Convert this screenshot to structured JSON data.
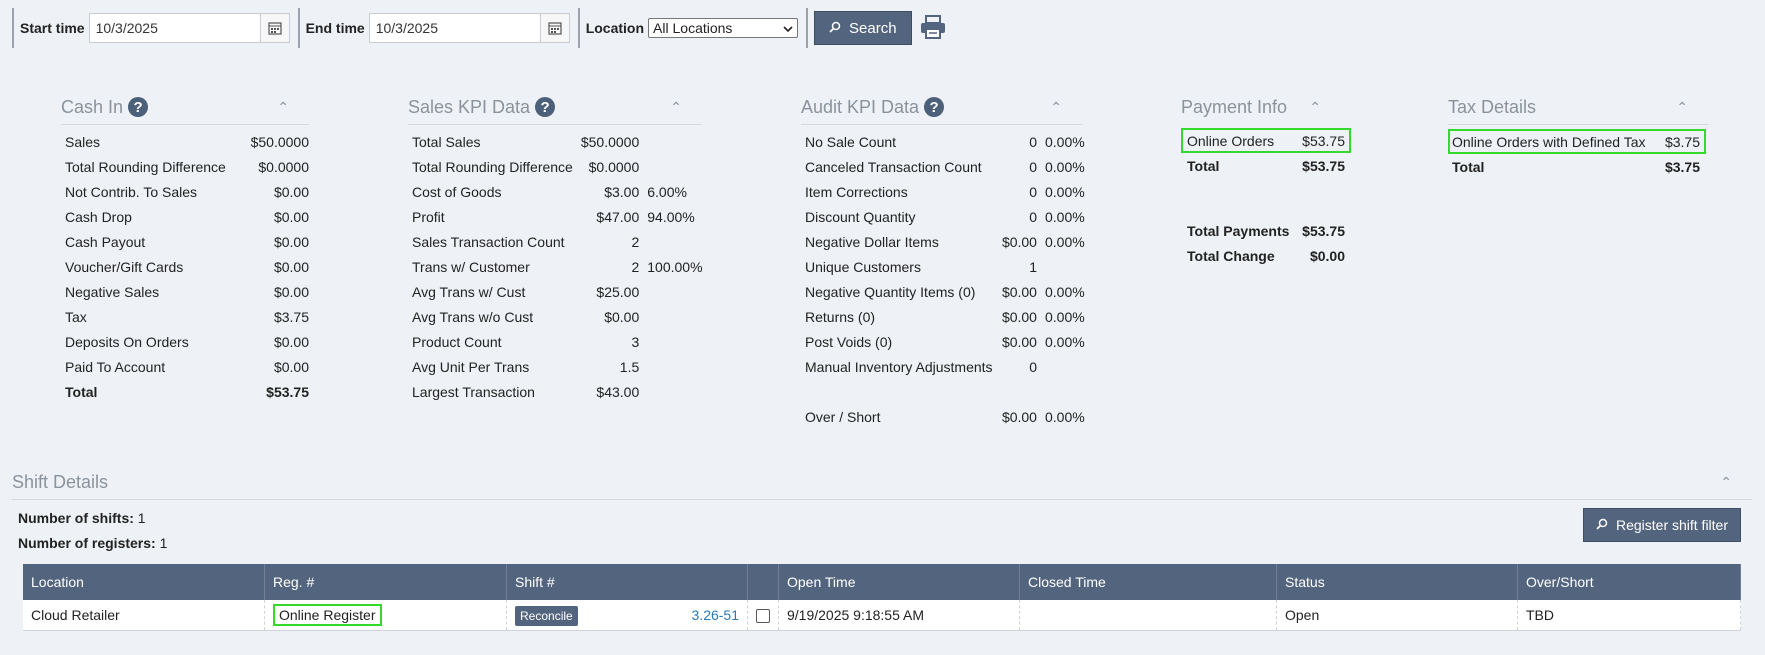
{
  "toolbar": {
    "start_label": "Start time",
    "start_value": "10/3/2025",
    "end_label": "End time",
    "end_value": "10/3/2025",
    "location_label": "Location",
    "location_value": "All Locations",
    "search_label": "Search",
    "icons": [
      "calendar-icon",
      "chevron-down-icon",
      "search-icon",
      "printer-icon"
    ]
  },
  "cash_in": {
    "title": "Cash In",
    "rows": [
      {
        "label": "Sales",
        "value": "$50.0000"
      },
      {
        "label": "Total Rounding Difference",
        "value": "$0.0000"
      },
      {
        "label": "Not Contrib. To Sales",
        "value": "$0.00"
      },
      {
        "label": "Cash Drop",
        "value": "$0.00"
      },
      {
        "label": "Cash Payout",
        "value": "$0.00"
      },
      {
        "label": "Voucher/Gift Cards",
        "value": "$0.00"
      },
      {
        "label": "Negative Sales",
        "value": "$0.00"
      },
      {
        "label": "Tax",
        "value": "$3.75"
      },
      {
        "label": "Deposits On Orders",
        "value": "$0.00"
      },
      {
        "label": "Paid To Account",
        "value": "$0.00"
      },
      {
        "label": "Total",
        "value": "$53.75"
      }
    ]
  },
  "sales_kpi": {
    "title": "Sales KPI Data",
    "rows": [
      {
        "label": "Total Sales",
        "value": "$50.0000",
        "pct": ""
      },
      {
        "label": "Total Rounding Difference",
        "value": "$0.0000",
        "pct": ""
      },
      {
        "label": "Cost of Goods",
        "value": "$3.00",
        "pct": "6.00%"
      },
      {
        "label": "Profit",
        "value": "$47.00",
        "pct": "94.00%"
      },
      {
        "label": "Sales Transaction Count",
        "value": "2",
        "pct": ""
      },
      {
        "label": "Trans w/ Customer",
        "value": "2",
        "pct": "100.00%"
      },
      {
        "label": "Avg Trans w/ Cust",
        "value": "$25.00",
        "pct": ""
      },
      {
        "label": "Avg Trans w/o Cust",
        "value": "$0.00",
        "pct": ""
      },
      {
        "label": "Product Count",
        "value": "3",
        "pct": ""
      },
      {
        "label": "Avg Unit Per Trans",
        "value": "1.5",
        "pct": ""
      },
      {
        "label": "Largest Transaction",
        "value": "$43.00",
        "pct": ""
      }
    ]
  },
  "audit_kpi": {
    "title": "Audit KPI Data",
    "rows": [
      {
        "label": "No Sale Count",
        "value": "0",
        "pct": "0.00%"
      },
      {
        "label": "Canceled Transaction Count",
        "value": "0",
        "pct": "0.00%"
      },
      {
        "label": "Item Corrections",
        "value": "0",
        "pct": "0.00%"
      },
      {
        "label": "Discount Quantity",
        "value": "0",
        "pct": "0.00%"
      },
      {
        "label": "Negative Dollar Items",
        "value": "$0.00",
        "pct": "0.00%"
      },
      {
        "label": "Unique Customers",
        "value": "1",
        "pct": ""
      },
      {
        "label": "Negative Quantity Items (0)",
        "value": "$0.00",
        "pct": "0.00%"
      },
      {
        "label": "Returns (0)",
        "value": "$0.00",
        "pct": "0.00%"
      },
      {
        "label": "Post Voids (0)",
        "value": "$0.00",
        "pct": "0.00%"
      },
      {
        "label": "Manual Inventory Adjustments",
        "value": "0",
        "pct": ""
      },
      {
        "label": "Over / Short",
        "value": "$0.00",
        "pct": "0.00%"
      }
    ]
  },
  "payment_info": {
    "title": "Payment Info",
    "rows": [
      {
        "label": "Online Orders",
        "value": "$53.75"
      },
      {
        "label": "Total",
        "value": "$53.75"
      }
    ],
    "total_payments_label": "Total Payments",
    "total_payments_value": "$53.75",
    "total_change_label": "Total Change",
    "total_change_value": "$0.00"
  },
  "tax_details": {
    "title": "Tax Details",
    "rows": [
      {
        "label": "Online Orders with Defined Tax",
        "value": "$3.75"
      },
      {
        "label": "Total",
        "value": "$3.75"
      }
    ]
  },
  "shift_details": {
    "title": "Shift Details",
    "shifts_label": "Number of shifts:",
    "shifts_value": "1",
    "registers_label": "Number of registers:",
    "registers_value": "1",
    "filter_label": "Register shift filter",
    "columns": [
      "Location",
      "Reg. #",
      "Shift #",
      "",
      "Open Time",
      "Closed Time",
      "Status",
      "Over/Short"
    ],
    "row": {
      "location": "Cloud Retailer",
      "register": "Online Register",
      "reconcile": "Reconcile",
      "shift": "3.26-51",
      "open_time": "9/19/2025 9:18:55 AM",
      "closed_time": "",
      "status": "Open",
      "over_short": "TBD"
    }
  },
  "colors": {
    "accent": "#53657e",
    "highlight": "#35d82d",
    "link": "#2a7ab8"
  }
}
